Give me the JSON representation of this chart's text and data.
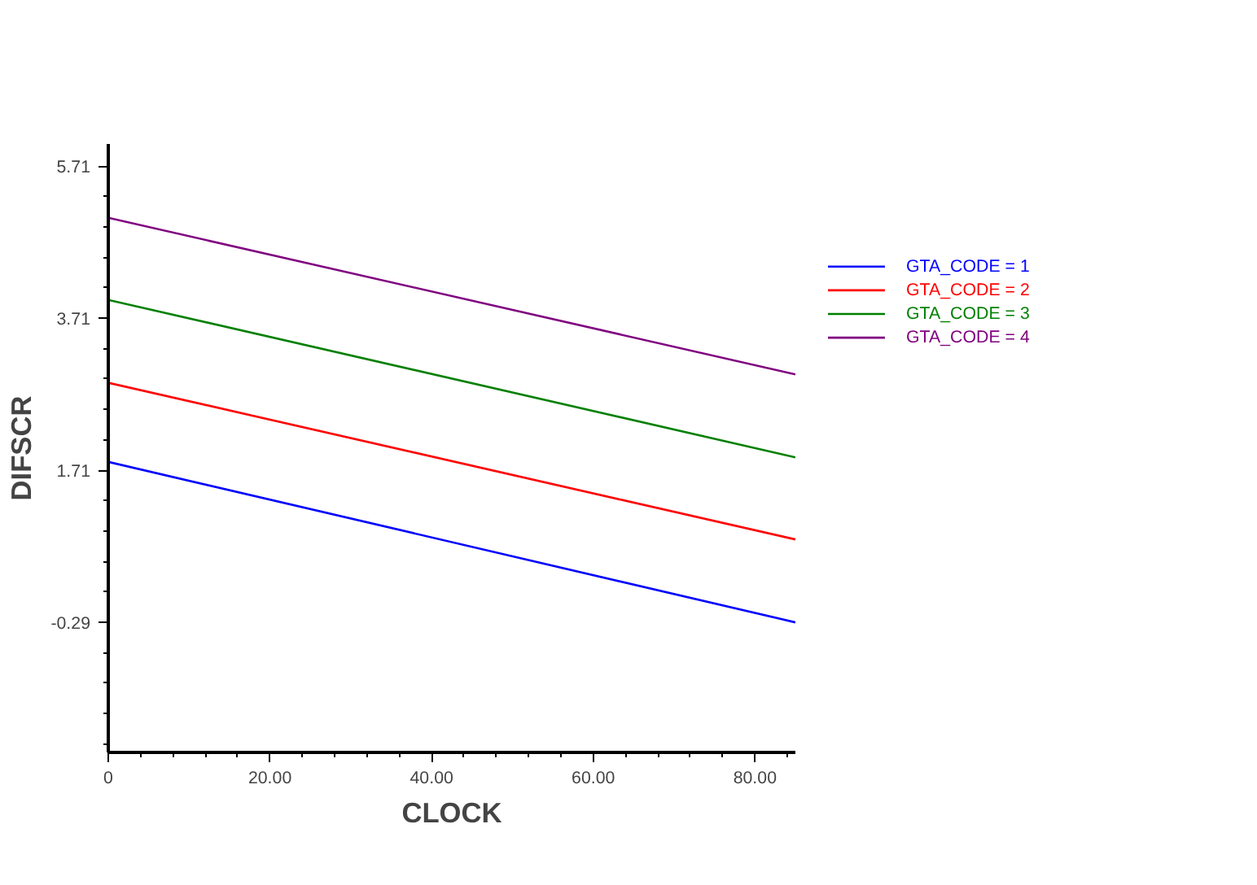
{
  "chart_data": {
    "type": "line",
    "xlabel": "CLOCK",
    "ylabel": "DIFSCR",
    "x": [
      0,
      85
    ],
    "series": [
      {
        "name": "GTA_CODE = 1",
        "color": "#0000ff",
        "values": [
          1.82,
          -0.29
        ]
      },
      {
        "name": "GTA_CODE = 2",
        "color": "#ff0000",
        "values": [
          2.86,
          0.8
        ]
      },
      {
        "name": "GTA_CODE = 3",
        "color": "#008000",
        "values": [
          3.95,
          1.88
        ]
      },
      {
        "name": "GTA_CODE = 4",
        "color": "#800080",
        "values": [
          5.03,
          2.97
        ]
      }
    ],
    "xlim": [
      0,
      85
    ],
    "ylim": [
      -2.0,
      6.0
    ],
    "xticks": [
      {
        "value": 0,
        "label": "0"
      },
      {
        "value": 20,
        "label": "20.00"
      },
      {
        "value": 40,
        "label": "40.00"
      },
      {
        "value": 60,
        "label": "60.00"
      },
      {
        "value": 80,
        "label": "80.00"
      }
    ],
    "yticks": [
      -0.29,
      1.71,
      3.71,
      5.71
    ],
    "grid": false,
    "legend": "top right",
    "marker": "none",
    "line_style": "solid"
  }
}
